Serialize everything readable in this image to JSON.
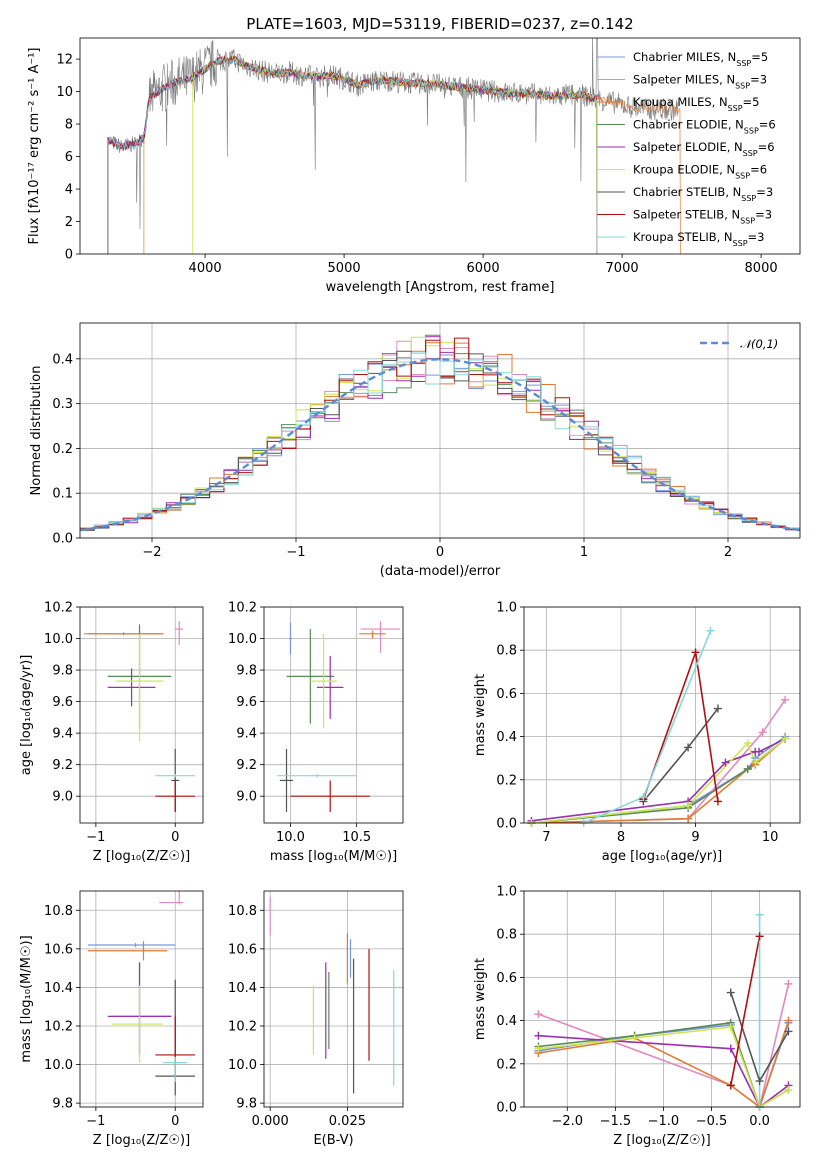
{
  "title": "PLATE=1603, MJD=53119, FIBERID=0237, z=0.142",
  "series": [
    {
      "name": "Chabrier MILES",
      "nssp": "5",
      "color": "#7b96e0"
    },
    {
      "name": "Salpeter MILES",
      "nssp": "3",
      "color": "#e08ac0"
    },
    {
      "name": "Kroupa MILES",
      "nssp": "5",
      "color": "#e07b33"
    },
    {
      "name": "Chabrier ELODIE",
      "nssp": "6",
      "color": "#5a8a5a"
    },
    {
      "name": "Salpeter ELODIE",
      "nssp": "6",
      "color": "#9a2fb0"
    },
    {
      "name": "Kroupa ELODIE",
      "nssp": "6",
      "color": "#cde84f"
    },
    {
      "name": "Chabrier STELIB",
      "nssp": "3",
      "color": "#555555"
    },
    {
      "name": "Salpeter STELIB",
      "nssp": "3",
      "color": "#b01010"
    },
    {
      "name": "Kroupa STELIB",
      "nssp": "3",
      "color": "#86d8d8"
    }
  ],
  "chart_data": [
    {
      "panel": "spectrum",
      "type": "line",
      "xlabel": "wavelength [Angstrom, rest frame]",
      "ylabel": "Flux [fλ10⁻¹⁷ erg cm⁻² s⁻¹ A⁻¹]",
      "xlim": [
        3100,
        8280
      ],
      "ylim": [
        0,
        13.3
      ],
      "xticks": [
        4000,
        5000,
        6000,
        7000,
        8000
      ],
      "yticks": [
        0,
        2,
        4,
        6,
        8,
        10,
        12
      ],
      "continuum": {
        "x": [
          3300,
          3400,
          3500,
          3560,
          3600,
          3700,
          3800,
          3900,
          4000,
          4100,
          4200,
          4300,
          4400,
          4500,
          4600,
          4700,
          4800,
          4900,
          5000,
          5100,
          5200,
          5300,
          5400,
          5500,
          5600,
          5700,
          5800,
          5900,
          6000,
          6100,
          6200,
          6300,
          6400,
          6500,
          6600,
          6700,
          6800
        ],
        "y": [
          7.0,
          6.6,
          6.8,
          7.2,
          9.6,
          10.2,
          10.6,
          10.8,
          11.4,
          11.9,
          12.0,
          11.6,
          11.3,
          11.1,
          11.2,
          11.0,
          10.9,
          11.0,
          10.8,
          10.4,
          10.6,
          10.7,
          10.6,
          10.5,
          10.5,
          10.4,
          10.3,
          10.2,
          10.1,
          10.0,
          9.9,
          9.9,
          9.8,
          9.7,
          9.8,
          9.8,
          9.6
        ]
      },
      "extension": {
        "x": [
          6800,
          6900,
          7000,
          7100,
          7200,
          7300,
          7400
        ],
        "y": [
          9.6,
          9.4,
          9.2,
          9.0,
          8.9,
          8.9,
          8.9
        ]
      }
    },
    {
      "panel": "residual_histogram",
      "type": "line",
      "xlabel": "(data-model)/error",
      "ylabel": "Normed distribution",
      "xlim": [
        -2.5,
        2.5
      ],
      "ylim": [
        0,
        0.48
      ],
      "xticks": [
        -2,
        -1,
        0,
        1,
        2
      ],
      "yticks": [
        0.0,
        0.1,
        0.2,
        0.3,
        0.4
      ],
      "reference": {
        "name": "𝒩(0,1)",
        "mean": 0,
        "sigma": 1,
        "color": "#5b8bd6"
      }
    },
    {
      "panel": "age_vs_Z",
      "type": "scatter",
      "xlabel": "Z [log₁₀(Z/Z☉)]",
      "ylabel": "age  [log₁₀(age/yr)]",
      "xlim": [
        -1.2,
        0.35
      ],
      "ylim": [
        8.83,
        10.2
      ],
      "xticks": [
        -1,
        0
      ],
      "yticks": [
        9.0,
        9.2,
        9.4,
        9.6,
        9.8,
        10.0,
        10.2
      ],
      "points": [
        {
          "series": 0,
          "x": -0.65,
          "y": 10.03,
          "xerr": [
            0.5,
            0.5
          ],
          "yerr": [
            0.01,
            0.01
          ]
        },
        {
          "series": 1,
          "x": 0.05,
          "y": 10.06,
          "xerr": [
            0.05,
            0.05
          ],
          "yerr": [
            0.1,
            0.05
          ]
        },
        {
          "series": 2,
          "x": -0.45,
          "y": 10.03,
          "xerr": [
            0.65,
            0.3
          ],
          "yerr": [
            0.03,
            0.02
          ]
        },
        {
          "series": 3,
          "x": -0.45,
          "y": 9.76,
          "xerr": [
            0.4,
            0.4
          ],
          "yerr": [
            0.33,
            0.33
          ]
        },
        {
          "series": 4,
          "x": -0.55,
          "y": 9.69,
          "xerr": [
            0.3,
            0.3
          ],
          "yerr": [
            0.12,
            0.12
          ]
        },
        {
          "series": 5,
          "x": -0.45,
          "y": 9.73,
          "xerr": [
            0.3,
            0.3
          ],
          "yerr": [
            0.38,
            0.3
          ]
        },
        {
          "series": 6,
          "x": 0.0,
          "y": 9.1,
          "xerr": [
            0.05,
            0.05
          ],
          "yerr": [
            0.2,
            0.2
          ]
        },
        {
          "series": 7,
          "x": 0.0,
          "y": 9.0,
          "xerr": [
            0.25,
            0.25
          ],
          "yerr": [
            0.1,
            0.1
          ]
        },
        {
          "series": 8,
          "x": 0.0,
          "y": 9.13,
          "xerr": [
            0.25,
            0.25
          ],
          "yerr": [
            0.01,
            0.01
          ]
        }
      ]
    },
    {
      "panel": "age_vs_mass",
      "type": "scatter",
      "xlabel": "mass [log₁₀(M/M☉)]",
      "ylabel": "",
      "xlim": [
        9.8,
        10.85
      ],
      "ylim": [
        8.83,
        10.2
      ],
      "xticks": [
        10.0,
        10.5
      ],
      "yticks": [
        9.0,
        9.2,
        9.4,
        9.6,
        9.8,
        10.0,
        10.2
      ],
      "points": [
        {
          "series": 0,
          "x": 10.0,
          "y": 10.0,
          "xerr": [
            0.01,
            0.01
          ],
          "yerr": [
            0.1,
            0.1
          ]
        },
        {
          "series": 1,
          "x": 10.68,
          "y": 10.06,
          "xerr": [
            0.15,
            0.15
          ],
          "yerr": [
            0.15,
            0.05
          ]
        },
        {
          "series": 2,
          "x": 10.62,
          "y": 10.03,
          "xerr": [
            0.1,
            0.1
          ],
          "yerr": [
            0.03,
            0.02
          ]
        },
        {
          "series": 3,
          "x": 10.15,
          "y": 9.76,
          "xerr": [
            0.18,
            0.18
          ],
          "yerr": [
            0.3,
            0.3
          ]
        },
        {
          "series": 4,
          "x": 10.3,
          "y": 9.69,
          "xerr": [
            0.1,
            0.1
          ],
          "yerr": [
            0.2,
            0.2
          ]
        },
        {
          "series": 5,
          "x": 10.25,
          "y": 9.73,
          "xerr": [
            0.1,
            0.1
          ],
          "yerr": [
            0.3,
            0.3
          ]
        },
        {
          "series": 6,
          "x": 9.97,
          "y": 9.1,
          "xerr": [
            0.05,
            0.05
          ],
          "yerr": [
            0.2,
            0.2
          ]
        },
        {
          "series": 7,
          "x": 10.3,
          "y": 9.0,
          "xerr": [
            0.3,
            0.3
          ],
          "yerr": [
            0.1,
            0.1
          ]
        },
        {
          "series": 8,
          "x": 10.2,
          "y": 9.13,
          "xerr": [
            0.3,
            0.3
          ],
          "yerr": [
            0.01,
            0.01
          ]
        }
      ]
    },
    {
      "panel": "weight_vs_age",
      "type": "line",
      "xlabel": "age  [log₁₀(age/yr)]",
      "ylabel": "mass weight",
      "xlim": [
        6.7,
        10.4
      ],
      "ylim": [
        0,
        1.0
      ],
      "xticks": [
        7,
        8,
        9,
        10
      ],
      "yticks": [
        0.0,
        0.2,
        0.4,
        0.6,
        0.8,
        1.0
      ],
      "series_points": [
        {
          "series": 0,
          "x": [
            6.8,
            8.9,
            9.7,
            9.8,
            10.2
          ],
          "y": [
            0.0,
            0.08,
            0.25,
            0.3,
            0.4
          ]
        },
        {
          "series": 1,
          "x": [
            6.8,
            8.9,
            9.9,
            10.2
          ],
          "y": [
            0.0,
            0.02,
            0.42,
            0.57
          ]
        },
        {
          "series": 2,
          "x": [
            6.8,
            8.9,
            9.7,
            9.8,
            10.2
          ],
          "y": [
            0.0,
            0.02,
            0.25,
            0.27,
            0.39
          ]
        },
        {
          "series": 3,
          "x": [
            6.8,
            8.9,
            9.7,
            9.8,
            10.2
          ],
          "y": [
            0.0,
            0.07,
            0.25,
            0.28,
            0.39
          ]
        },
        {
          "series": 4,
          "x": [
            6.8,
            8.9,
            9.4,
            9.8,
            9.85,
            10.2
          ],
          "y": [
            0.01,
            0.1,
            0.28,
            0.33,
            0.33,
            0.39
          ]
        },
        {
          "series": 5,
          "x": [
            6.8,
            8.9,
            9.7,
            9.8,
            10.2
          ],
          "y": [
            0.0,
            0.08,
            0.37,
            0.28,
            0.39
          ]
        },
        {
          "series": 6,
          "x": [
            8.3,
            8.9,
            9.3
          ],
          "y": [
            0.1,
            0.35,
            0.53
          ]
        },
        {
          "series": 7,
          "x": [
            8.3,
            9.0,
            9.3
          ],
          "y": [
            0.11,
            0.79,
            0.1
          ]
        },
        {
          "series": 8,
          "x": [
            7.5,
            8.3,
            9.2
          ],
          "y": [
            0.0,
            0.12,
            0.89
          ]
        }
      ]
    },
    {
      "panel": "mass_vs_Z",
      "type": "scatter",
      "xlabel": "Z [log₁₀(Z/Z☉)]",
      "ylabel": "mass [log₁₀(M/M☉)]",
      "xlim": [
        -1.2,
        0.35
      ],
      "ylim": [
        9.78,
        10.9
      ],
      "xticks": [
        -1,
        0
      ],
      "yticks": [
        9.8,
        10.0,
        10.2,
        10.4,
        10.6,
        10.8
      ],
      "points": [
        {
          "series": 0,
          "x": -0.5,
          "y": 10.62,
          "xerr": [
            0.6,
            0.5
          ],
          "yerr": [
            0.01,
            0.01
          ]
        },
        {
          "series": 1,
          "x": 0.05,
          "y": 10.84,
          "xerr": [
            0.25,
            0.05
          ],
          "yerr": [
            0.01,
            0.06
          ]
        },
        {
          "series": 2,
          "x": -0.4,
          "y": 10.59,
          "xerr": [
            0.7,
            0.3
          ],
          "yerr": [
            0.05,
            0.05
          ]
        },
        {
          "series": 3,
          "x": -0.45,
          "y": 10.25,
          "xerr": [
            0.35,
            0.4
          ],
          "yerr": [
            0.2,
            0.28
          ]
        },
        {
          "series": 4,
          "x": -0.45,
          "y": 10.25,
          "xerr": [
            0.4,
            0.4
          ],
          "yerr": [
            0.2,
            0.28
          ]
        },
        {
          "series": 5,
          "x": -0.45,
          "y": 10.21,
          "xerr": [
            0.35,
            0.3
          ],
          "yerr": [
            0.2,
            0.2
          ]
        },
        {
          "series": 6,
          "x": 0.0,
          "y": 9.94,
          "xerr": [
            0.25,
            0.25
          ],
          "yerr": [
            0.1,
            0.5
          ]
        },
        {
          "series": 7,
          "x": 0.0,
          "y": 10.05,
          "xerr": [
            0.25,
            0.25
          ],
          "yerr": [
            0.05,
            0.2
          ]
        },
        {
          "series": 8,
          "x": 0.0,
          "y": 10.01,
          "xerr": [
            0.15,
            0.15
          ],
          "yerr": [
            0.1,
            0.03
          ]
        }
      ]
    },
    {
      "panel": "mass_vs_EBV",
      "type": "scatter",
      "xlabel": "E(B-V)",
      "ylabel": "",
      "xlim": [
        -0.002,
        0.043
      ],
      "ylim": [
        9.78,
        10.9
      ],
      "xticks": [
        0.0,
        0.025
      ],
      "yticks": [
        9.8,
        10.0,
        10.2,
        10.4,
        10.6,
        10.8
      ],
      "points": [
        {
          "series": 0,
          "x": 0.026,
          "y": 10.55,
          "xerr": [
            0,
            0
          ],
          "yerr": [
            0.1,
            0.1
          ]
        },
        {
          "series": 1,
          "x": 0.0,
          "y": 10.77,
          "xerr": [
            0,
            0
          ],
          "yerr": [
            0.1,
            0.1
          ]
        },
        {
          "series": 2,
          "x": 0.025,
          "y": 10.55,
          "xerr": [
            0,
            0
          ],
          "yerr": [
            0.13,
            0.13
          ]
        },
        {
          "series": 3,
          "x": 0.019,
          "y": 10.28,
          "xerr": [
            0,
            0
          ],
          "yerr": [
            0.2,
            0.2
          ]
        },
        {
          "series": 4,
          "x": 0.018,
          "y": 10.28,
          "xerr": [
            0,
            0
          ],
          "yerr": [
            0.25,
            0.25
          ]
        },
        {
          "series": 5,
          "x": 0.014,
          "y": 10.23,
          "xerr": [
            0,
            0
          ],
          "yerr": [
            0.18,
            0.18
          ]
        },
        {
          "series": 6,
          "x": 0.027,
          "y": 10.2,
          "xerr": [
            0,
            0
          ],
          "yerr": [
            0.35,
            0.35
          ]
        },
        {
          "series": 7,
          "x": 0.032,
          "y": 10.31,
          "xerr": [
            0,
            0
          ],
          "yerr": [
            0.29,
            0.29
          ]
        },
        {
          "series": 8,
          "x": 0.04,
          "y": 10.19,
          "xerr": [
            0,
            0
          ],
          "yerr": [
            0.3,
            0.3
          ]
        }
      ]
    },
    {
      "panel": "weight_vs_Z",
      "type": "line",
      "xlabel": "Z [log₁₀(Z/Z☉)]",
      "ylabel": "mass weight",
      "xlim": [
        -2.45,
        0.42
      ],
      "ylim": [
        0,
        1.0
      ],
      "xticks": [
        -2.0,
        -1.5,
        -1.0,
        -0.5,
        0.0
      ],
      "yticks": [
        0.0,
        0.2,
        0.4,
        0.6,
        0.8,
        1.0
      ],
      "series_points": [
        {
          "series": 0,
          "x": [
            -2.3,
            -1.3,
            -0.3,
            0.0,
            0.3
          ],
          "y": [
            0.26,
            0.33,
            0.38,
            0.0,
            0.39
          ]
        },
        {
          "series": 1,
          "x": [
            -2.3,
            -0.3,
            0.0,
            0.3
          ],
          "y": [
            0.43,
            0.1,
            0.0,
            0.57
          ]
        },
        {
          "series": 2,
          "x": [
            -2.3,
            -1.3,
            -0.3,
            0.0,
            0.3
          ],
          "y": [
            0.25,
            0.32,
            0.1,
            0.0,
            0.4
          ]
        },
        {
          "series": 3,
          "x": [
            -2.3,
            -1.3,
            -0.3,
            0.0,
            0.3
          ],
          "y": [
            0.28,
            0.33,
            0.39,
            0.0,
            0.08
          ]
        },
        {
          "series": 4,
          "x": [
            -2.3,
            -0.3,
            0.0,
            0.3
          ],
          "y": [
            0.33,
            0.27,
            0.0,
            0.1
          ]
        },
        {
          "series": 5,
          "x": [
            -2.3,
            -1.3,
            -0.3,
            0.0,
            0.3
          ],
          "y": [
            0.27,
            0.32,
            0.37,
            0.0,
            0.08
          ]
        },
        {
          "series": 6,
          "x": [
            -0.3,
            0.0,
            0.3
          ],
          "y": [
            0.53,
            0.12,
            0.35
          ]
        },
        {
          "series": 7,
          "x": [
            -0.3,
            0.0
          ],
          "y": [
            0.1,
            0.79
          ]
        },
        {
          "series": 8,
          "x": [
            0.0,
            0.0
          ],
          "y": [
            0.0,
            0.89
          ]
        }
      ]
    }
  ]
}
